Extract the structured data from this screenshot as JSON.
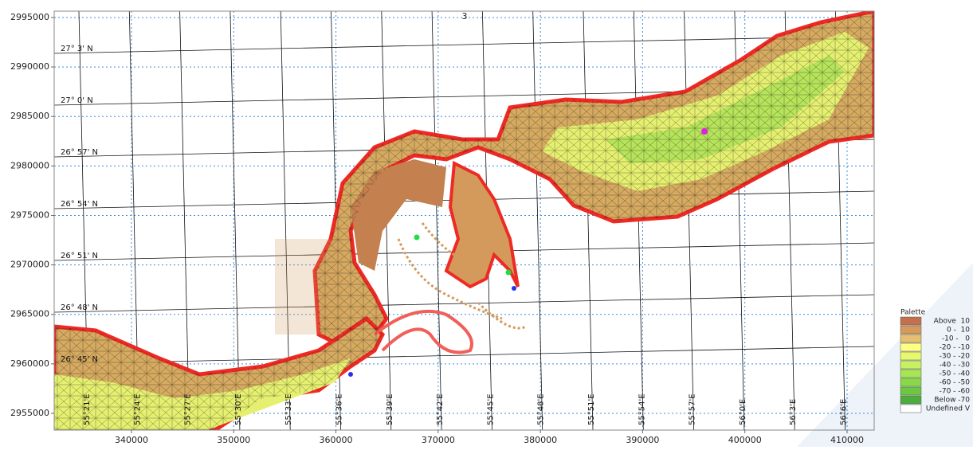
{
  "title": "3",
  "x_axis": {
    "xlim": [
      332440,
      412650
    ],
    "xticks": [
      340000,
      350000,
      360000,
      370000,
      380000,
      390000,
      400000,
      410000
    ]
  },
  "y_axis": {
    "ylim": [
      2953310,
      2995640
    ],
    "yticks": [
      2995000,
      2990000,
      2985000,
      2980000,
      2975000,
      2970000,
      2965000,
      2960000,
      2955000
    ]
  },
  "grid": true,
  "latitude_labels": [
    "27° 3' N",
    "27° 0' N",
    "26° 57' N",
    "26° 54' N",
    "26° 51' N",
    "26° 48' N",
    "26° 45' N"
  ],
  "longitude_labels": [
    "55°21'E",
    "55°24'E",
    "55°27'E",
    "55°30'E",
    "55°33'E",
    "55°36'E",
    "55°39'E",
    "55°42'E",
    "55°45'E",
    "55°48'E",
    "55°51'E",
    "55°54'E",
    "55°57'E",
    "56°0'E",
    "56°3'E",
    "56°6'E"
  ],
  "legend": {
    "title": "Palette",
    "entries": [
      {
        "label": "Above  10",
        "color": "#c4704c"
      },
      {
        "label": "0 -  10",
        "color": "#d49a5c"
      },
      {
        "label": "-10 -   0",
        "color": "#e6c070"
      },
      {
        "label": "-20 - -10",
        "color": "#ffff80"
      },
      {
        "label": "-30 - -20",
        "color": "#e6f870"
      },
      {
        "label": "-40 - -30",
        "color": "#c8f060"
      },
      {
        "label": "-50 - -40",
        "color": "#a6e650"
      },
      {
        "label": "-60 - -50",
        "color": "#88d848"
      },
      {
        "label": "-70 - -60",
        "color": "#6cc840"
      },
      {
        "label": "Below -70",
        "color": "#4eac3c"
      },
      {
        "label": "Undefined V",
        "color": "#ffffff"
      }
    ]
  }
}
